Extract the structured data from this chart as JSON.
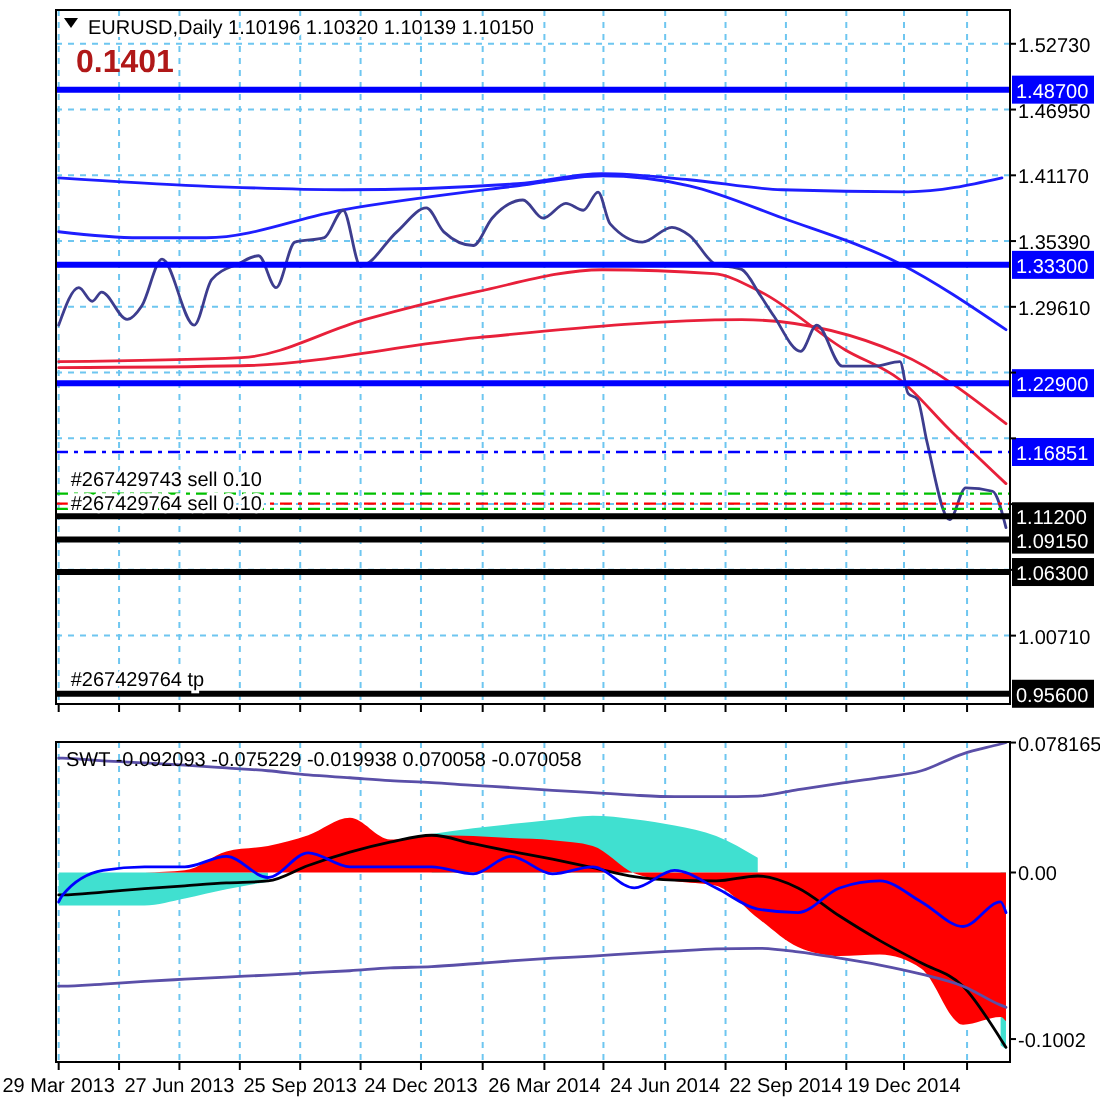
{
  "chart_data": [
    {
      "type": "line",
      "title": "EURUSD,Daily 1.10196 1.10320 1.10139 1.10150",
      "subtitle": "0.1401",
      "xlim": [
        "2013-03-27",
        "2015-03-08"
      ],
      "ylim": [
        0.947,
        1.557
      ],
      "grid": true,
      "tick_labels": "y",
      "xticks": [
        {
          "value": "2013-03-29",
          "label": null
        },
        {
          "value": "2013-05-13",
          "label": null
        },
        {
          "value": "2013-06-27",
          "label": null
        },
        {
          "value": "2013-08-11",
          "label": null
        },
        {
          "value": "2013-09-25",
          "label": null
        },
        {
          "value": "2013-11-09",
          "label": null
        },
        {
          "value": "2013-12-24",
          "label": null
        },
        {
          "value": "2014-02-08",
          "label": null
        },
        {
          "value": "2014-03-26",
          "label": null
        },
        {
          "value": "2014-05-09",
          "label": null
        },
        {
          "value": "2014-06-24",
          "label": null
        },
        {
          "value": "2014-08-08",
          "label": null
        },
        {
          "value": "2014-09-22",
          "label": null
        },
        {
          "value": "2014-11-06",
          "label": null
        },
        {
          "value": "2014-12-19",
          "label": null
        },
        {
          "value": "2015-02-04",
          "label": null
        }
      ],
      "yticks": [
        {
          "value": 1.5273,
          "label": "1.52730"
        },
        {
          "value": 1.4695,
          "label": "1.46950"
        },
        {
          "value": 1.4117,
          "label": "1.41170"
        },
        {
          "value": 1.3539,
          "label": "1.35390"
        },
        {
          "value": 1.2961,
          "label": "1.29610"
        },
        {
          "value": 1.2383,
          "label": null
        },
        {
          "value": 1.1805,
          "label": null
        },
        {
          "value": 1.1227,
          "label": null
        },
        {
          "value": 1.0649,
          "label": null
        },
        {
          "value": 1.0071,
          "label": "1.00710"
        }
      ],
      "series": [
        {
          "type": "line",
          "color": "#1e1eff",
          "x": [
            "2013-03-29",
            "2013-07-11",
            "2013-10-27",
            "2014-03-06",
            "2014-05-08",
            "2014-07-12",
            "2014-09-19",
            "2014-12-22",
            "2015-03-02"
          ],
          "values": [
            1.4095,
            1.4025,
            1.399,
            1.4043,
            1.4131,
            1.4078,
            1.399,
            1.3972,
            1.4095
          ]
        },
        {
          "type": "line",
          "color": "#1e1eff",
          "x": [
            "2013-03-29",
            "2013-05-28",
            "2013-07-17",
            "2013-10-27",
            "2014-03-06",
            "2014-05-08",
            "2014-07-12",
            "2014-09-19",
            "2014-12-16",
            "2015-03-05"
          ],
          "values": [
            1.3621,
            1.3568,
            1.3568,
            1.3814,
            1.4025,
            1.4113,
            1.4025,
            1.3744,
            1.334,
            1.276
          ]
        },
        {
          "type": "line",
          "color": "#e8203a",
          "x": [
            "2013-03-29",
            "2013-08-12",
            "2013-11-12",
            "2014-02-04",
            "2014-05-08",
            "2014-07-30",
            "2014-09-03",
            "2014-11-05",
            "2014-12-16",
            "2015-01-22",
            "2015-03-05"
          ],
          "values": [
            1.2479,
            1.2514,
            1.2848,
            1.3094,
            1.3287,
            1.3252,
            1.3094,
            1.2584,
            1.232,
            1.1881,
            1.1407
          ]
        },
        {
          "type": "line",
          "color": "#e8203a",
          "x": [
            "2013-03-29",
            "2013-08-12",
            "2014-02-04",
            "2014-08-20",
            "2014-12-16",
            "2015-03-05"
          ],
          "values": [
            1.2426,
            1.2443,
            1.269,
            1.2848,
            1.2549,
            1.1934
          ]
        },
        {
          "type": "line",
          "color": "#3d3d8f",
          "x": [
            "2013-03-29",
            "2013-04-13",
            "2013-04-23",
            "2013-04-30",
            "2013-05-19",
            "2013-05-30",
            "2013-06-14",
            "2013-07-08",
            "2013-07-21",
            "2013-08-10",
            "2013-08-25",
            "2013-09-07",
            "2013-09-21",
            "2013-10-13",
            "2013-10-27",
            "2013-11-09",
            "2013-12-06",
            "2013-12-28",
            "2014-01-10",
            "2014-02-01",
            "2014-02-15",
            "2014-03-10",
            "2014-03-25",
            "2014-04-11",
            "2014-04-24",
            "2014-05-05",
            "2014-05-14",
            "2014-06-07",
            "2014-06-29",
            "2014-07-12",
            "2014-07-31",
            "2014-08-20",
            "2014-09-03",
            "2014-09-13",
            "2014-10-03",
            "2014-10-15",
            "2014-11-03",
            "2014-11-27",
            "2014-12-16",
            "2014-12-22",
            "2014-12-29",
            "2015-01-05",
            "2015-01-22",
            "2015-02-03",
            "2015-02-23",
            "2015-03-05"
          ],
          "values": [
            1.28,
            1.313,
            1.301,
            1.309,
            1.285,
            1.297,
            1.338,
            1.28,
            1.32,
            1.334,
            1.341,
            1.313,
            1.353,
            1.357,
            1.381,
            1.332,
            1.362,
            1.383,
            1.362,
            1.35,
            1.374,
            1.39,
            1.374,
            1.387,
            1.381,
            1.397,
            1.369,
            1.353,
            1.366,
            1.359,
            1.334,
            1.329,
            1.306,
            1.288,
            1.257,
            1.28,
            1.244,
            1.244,
            1.248,
            1.22,
            1.215,
            1.178,
            1.109,
            1.137,
            1.134,
            1.102
          ]
        }
      ],
      "ref_lines": [
        {
          "axis": "y",
          "value": 1.487,
          "label": "1.48700",
          "color": "#0000ff"
        },
        {
          "axis": "y",
          "value": 1.333,
          "label": "1.33300",
          "color": "#0000ff"
        },
        {
          "axis": "y",
          "value": 1.229,
          "label": "1.22900",
          "color": "#0000ff"
        },
        {
          "axis": "y",
          "value": 1.16851,
          "label": "1.16851",
          "color": "#0000ff",
          "line_style": "dashed"
        },
        {
          "axis": "y",
          "value": 1.1319,
          "label": null,
          "color": "#00c000",
          "line_style": "dashed"
        },
        {
          "axis": "y",
          "value": 1.1231,
          "label": null,
          "color": "#ff0000",
          "line_style": "dashed"
        },
        {
          "axis": "y",
          "value": 1.1185,
          "label": null,
          "color": "#00c000",
          "line_style": "dashed"
        },
        {
          "axis": "y",
          "value": 1.112,
          "label": "1.11200",
          "color": "#000000"
        },
        {
          "axis": "y",
          "value": 1.0915,
          "label": "1.09150",
          "color": "#000000"
        },
        {
          "axis": "y",
          "value": 1.063,
          "label": "1.06300",
          "color": "#000000"
        },
        {
          "axis": "y",
          "value": 0.956,
          "label": "0.95600",
          "color": "#000000"
        }
      ],
      "annotations": [
        {
          "text": "#267429743 sell 0.10",
          "x": "2013-03-29",
          "y": 1.1319
        },
        {
          "text": "#267429764 sell 0.10",
          "x": "2013-03-29",
          "y": 1.1231
        },
        {
          "text": "#267429764 tp",
          "x": "2013-03-29",
          "y": 0.956
        }
      ]
    },
    {
      "type": "line",
      "title": "SWT -0.092093 -0.075229 -0.019938 0.070058 -0.070058",
      "xlim": [
        "2013-03-27",
        "2015-03-08"
      ],
      "ylim": [
        -0.114,
        0.0785
      ],
      "grid": "x",
      "xticks": [
        {
          "value": "2013-03-29",
          "label": "29 Mar 2013"
        },
        {
          "value": "2013-05-13",
          "label": null
        },
        {
          "value": "2013-06-27",
          "label": "27 Jun 2013"
        },
        {
          "value": "2013-08-11",
          "label": null
        },
        {
          "value": "2013-09-25",
          "label": "25 Sep 2013"
        },
        {
          "value": "2013-11-09",
          "label": null
        },
        {
          "value": "2013-12-24",
          "label": "24 Dec 2013"
        },
        {
          "value": "2014-02-08",
          "label": null
        },
        {
          "value": "2014-03-26",
          "label": "26 Mar 2014"
        },
        {
          "value": "2014-05-09",
          "label": null
        },
        {
          "value": "2014-06-24",
          "label": "24 Jun 2014"
        },
        {
          "value": "2014-08-08",
          "label": null
        },
        {
          "value": "2014-09-22",
          "label": "22 Sep 2014"
        },
        {
          "value": "2014-11-06",
          "label": null
        },
        {
          "value": "2014-12-19",
          "label": "19 Dec 2014"
        },
        {
          "value": "2015-02-04",
          "label": null
        }
      ],
      "yticks": [
        {
          "value": 0.078165,
          "label": "0.078165"
        },
        {
          "value": 0,
          "label": "0.00"
        },
        {
          "value": -0.1002,
          "label": "-0.1002"
        }
      ],
      "x": [
        "2013-03-29",
        "2013-04-01",
        "2013-05-01",
        "2013-06-01",
        "2013-07-01",
        "2013-08-01",
        "2013-09-01",
        "2013-10-01",
        "2013-11-01",
        "2013-12-01",
        "2014-01-01",
        "2014-02-01",
        "2014-03-01",
        "2014-04-01",
        "2014-05-01",
        "2014-06-01",
        "2014-07-01",
        "2014-08-01",
        "2014-09-01",
        "2014-10-01",
        "2014-11-01",
        "2014-12-01",
        "2015-01-01",
        "2015-02-01",
        "2015-03-01",
        "2015-03-05"
      ],
      "series": [
        {
          "type": "area",
          "color": "#40e0d0",
          "values": [
            -0.0198,
            -0.0198,
            -0.0198,
            -0.0198,
            -0.0156,
            -0.0101,
            -0.0055,
            null,
            null,
            null,
            0.0232,
            0.0266,
            0.0291,
            0.0317,
            0.0342,
            0.0321,
            0.0283,
            0.022,
            0.0089,
            null,
            null,
            null,
            null,
            null,
            -0.1039,
            -0.1064
          ]
        },
        {
          "type": "area",
          "color": "#ff0000",
          "values": [
            0,
            0,
            0,
            0,
            0.0013,
            0.0127,
            0.016,
            0.0224,
            0.0329,
            0.0198,
            0.0224,
            0.022,
            0.0207,
            0.0194,
            0.016,
            -0.0004,
            -0.0051,
            -0.008,
            -0.0274,
            -0.0448,
            -0.0503,
            -0.0494,
            -0.0579,
            -0.0916,
            -0.087,
            -0.0895
          ]
        },
        {
          "type": "line",
          "color": "#000000",
          "values": [
            -0.0135,
            -0.0135,
            -0.0118,
            -0.0097,
            -0.008,
            -0.0063,
            -0.0051,
            0.0042,
            0.0122,
            0.0182,
            0.0224,
            0.0173,
            0.0127,
            0.008,
            0.003,
            -0.0025,
            -0.0046,
            -0.0051,
            -0.0021,
            -0.0093,
            -0.0262,
            -0.041,
            -0.0545,
            -0.0684,
            -0.1001,
            -0.1052
          ]
        },
        {
          "type": "line",
          "color": "#5a4fa8",
          "values": [
            0.0688,
            0.0688,
            0.0671,
            0.0659,
            0.0646,
            0.0629,
            0.0612,
            0.0587,
            0.057,
            0.0553,
            0.0541,
            0.0524,
            0.0511,
            0.0494,
            0.0481,
            0.0465,
            0.0456,
            0.0456,
            0.046,
            0.0498,
            0.0536,
            0.057,
            0.0612,
            0.0714,
            0.0773,
            0.0782
          ]
        },
        {
          "type": "line",
          "color": "#5a4fa8",
          "values": [
            -0.0684,
            -0.0684,
            -0.0671,
            -0.0655,
            -0.0642,
            -0.0629,
            -0.0617,
            -0.0604,
            -0.0591,
            -0.0574,
            -0.0566,
            -0.0549,
            -0.0532,
            -0.0515,
            -0.0503,
            -0.0486,
            -0.0473,
            -0.046,
            -0.0456,
            -0.0477,
            -0.0515,
            -0.0557,
            -0.0612,
            -0.0684,
            -0.0798,
            -0.0811
          ]
        },
        {
          "type": "line",
          "color": "#0000ff",
          "values": [
            -0.0177,
            -0.0135,
            0.0013,
            0.0034,
            0.0034,
            0.0097,
            -0.003,
            0.0118,
            0.0034,
            0.0034,
            0.0034,
            -0.0008,
            0.0097,
            -0.0008,
            0.0034,
            -0.0093,
            0.0013,
            -0.0093,
            -0.022,
            -0.0241,
            -0.0093,
            -0.0051,
            -0.0177,
            -0.0325,
            -0.0177,
            -0.0241
          ]
        }
      ]
    }
  ]
}
